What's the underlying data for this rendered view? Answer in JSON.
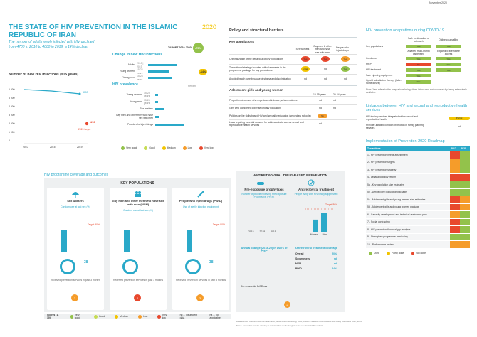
{
  "header": {
    "date": "November 2020",
    "title": "THE STATE OF HIV PREVENTION IN THE ISLAMIC REPUBLIC OF IRAN",
    "year": "2020",
    "summary": "The number of adults newly infected with HIV declined from 4700 in 2010 to 4000 in 2019, a 14% decline.",
    "new_inf_title": "Number of new HIV infections (≥15 years)",
    "change_title": "Change in new HIV infections",
    "target_label": "TARGET 2010-2020",
    "target_value": "-75%",
    "change_rows": [
      {
        "label": "Adults",
        "sub": "2010 | 2019"
      },
      {
        "label": "Young women",
        "sub": "15-24 years"
      },
      {
        "label": "Young men",
        "sub": "15-24 years"
      }
    ],
    "change_badge": "-14%",
    "prevalence_title": "HIV prevalence",
    "prev_rows": [
      {
        "label": "Young women",
        "sub": "15-24 years"
      },
      {
        "label": "Young men",
        "sub": "15-24 years"
      },
      {
        "label": "Sex workers",
        "sub": ""
      },
      {
        "label": "Gay men and other men who have sex with men",
        "sub": ""
      },
      {
        "label": "People who inject drugs",
        "sub": ""
      }
    ],
    "prev_pct": "Percent",
    "target_2020": "2020 target",
    "value_2020": "1200",
    "value_2019": "4000",
    "legend_prev": [
      {
        "label": "Very good",
        "color": "#93c24b"
      },
      {
        "label": "Good",
        "color": "#c6dc54"
      },
      {
        "label": "Medium",
        "color": "#f2c400"
      },
      {
        "label": "Low",
        "color": "#f59c2a"
      },
      {
        "label": "Very low",
        "color": "#e8482d"
      }
    ],
    "years": [
      "2010",
      "2015",
      "2019"
    ],
    "yticks": [
      "6 000",
      "5 000",
      "4 000",
      "3 000",
      "2 000",
      "1 000",
      "0"
    ]
  },
  "policy": {
    "title": "Policy and structural barriers",
    "key_pop": "Key populations",
    "cols": [
      "Sex workers",
      "Gay men & other men who have sex with men",
      "People who inject drugs"
    ],
    "rows": [
      {
        "label": "Criminalization of the behaviour of key populations",
        "v": [
          "Yes",
          "Yes",
          "Yes"
        ],
        "c": [
          "#e8482d",
          "#e8482d",
          "#f59c2a"
        ]
      },
      {
        "label": "The national strategy includes critical elements in the programme package for key populations",
        "v": [
          "≥ Half",
          "nd",
          "Yes"
        ],
        "c": [
          "#f2c400",
          "",
          "#93c24b"
        ]
      },
      {
        "label": "Avoided health care because of stigma and discrimination",
        "v": [
          "nd",
          "nd",
          "nd"
        ],
        "c": [
          "",
          "",
          ""
        ]
      }
    ],
    "ado": "Adolescent girls and young women",
    "ado_cols": [
      "15-19 years",
      "20-24 years"
    ],
    "ado_rows": [
      {
        "label": "Proportion of women who experienced intimate partner violence",
        "v": [
          "nd",
          "nd"
        ]
      },
      {
        "label": "Girls who completed lower secondary education",
        "v": [
          "nd",
          "nd"
        ]
      },
      {
        "label": "Policies on life skills-based HIV and sexuality education (secondary schools)",
        "v": [
          "No"
        ]
      },
      {
        "label": "Laws requiring parental consent for adolescents to access sexual and reproductive health services",
        "v": [
          "nd"
        ]
      }
    ]
  },
  "adaptations": {
    "title": "HIV prevention adaptations during COVID-19",
    "cols": [
      "Safe continuation of outreach",
      "Online counselling"
    ],
    "rows": [
      {
        "label": "Key populations",
        "v": [
          "Yes",
          "Yes"
        ]
      },
      {
        "label": "",
        "v": [
          "Adapted multi-month dispensing",
          "Expanded alternative access"
        ]
      },
      {
        "label": "Condoms",
        "v": [
          "Yes",
          "Yes"
        ]
      },
      {
        "label": "PrEP",
        "v": [
          "No",
          "Yes"
        ]
      },
      {
        "label": "HIV treatment",
        "v": [
          "Yes",
          "Yes"
        ]
      },
      {
        "label": "Safe injecting equipment",
        "v": [
          "Yes"
        ]
      },
      {
        "label": "Opioid substitution therapy (take-home doses)",
        "v": [
          "Yes"
        ]
      }
    ],
    "note": "Note: 'Yes' refers to the adaptations being either introduced and successfully being extensively available."
  },
  "linkages": {
    "title": "Linkages between HIV and sexual and reproductive health services",
    "rows": [
      {
        "label": "HIV testing services integrated within sexual and reproductive health",
        "v": "Partial"
      },
      {
        "label": "Provider-initiated condom promotion in family planning services",
        "v": "nd"
      }
    ]
  },
  "roadmap": {
    "title": "Implementation of Prevention 2020 Roadmap",
    "head": "Ten actions",
    "years": [
      "2017",
      "2020"
    ],
    "rows": [
      {
        "label": "1 - HIV prevention needs assessment",
        "c": [
          "#e8482d",
          "#93c24b"
        ]
      },
      {
        "label": "2 - HIV prevention targets",
        "c": [
          "#f59c2a",
          "#93c24b"
        ]
      },
      {
        "label": "3 - HIV prevention strategy",
        "c": [
          "#f59c2a",
          "#93c24b"
        ]
      },
      {
        "label": "4 - Legal and policy reform",
        "c": [
          "#e8482d",
          "#e8482d"
        ]
      },
      {
        "label": "5a - Key population size estimates",
        "c": [
          "#93c24b",
          "#93c24b"
        ]
      },
      {
        "label": "5b - Defined key population package",
        "c": [
          "#93c24b",
          "#93c24b"
        ]
      },
      {
        "label": "5c - Adolescent girls and young women size estimates",
        "c": [
          "#e8482d",
          "#f59c2a"
        ]
      },
      {
        "label": "5d - Adolescent girls and young women package",
        "c": [
          "#e8482d",
          "#f59c2a"
        ]
      },
      {
        "label": "6 - Capacity development and technical assistance plan",
        "c": [
          "#f59c2a",
          "#93c24b"
        ]
      },
      {
        "label": "7 - Social contracting",
        "c": [
          "#e8482d",
          "#93c24b"
        ]
      },
      {
        "label": "8 - HIV prevention financial gap analysis",
        "c": [
          "#e8482d",
          "#93c24b"
        ]
      },
      {
        "label": "9 - Strengthen programme monitoring",
        "c": [
          "#93c24b",
          "#93c24b"
        ]
      },
      {
        "label": "10 - Performance review",
        "c": [
          "#f59c2a",
          "#f59c2a"
        ]
      }
    ],
    "legend": [
      {
        "label": "Done",
        "color": "#93c24b"
      },
      {
        "label": "Partly done",
        "color": "#f2c400"
      },
      {
        "label": "Not done",
        "color": "#e8482d"
      }
    ]
  },
  "coverage": {
    "title": "HIV programme coverage and outcomes",
    "kp_title": "KEY POPULATIONS",
    "groups": [
      {
        "name": "Sex workers",
        "sub": "Condom use at last sex (%)",
        "target": "Target 90%",
        "dot": "38",
        "bot": "Received prevention services in past 3 months",
        "circ": "3"
      },
      {
        "name": "Gay men and other men who have sex with men (MSM)",
        "sub": "Condom use at last sex (%)",
        "target": "",
        "dot": "",
        "bot": "Received prevention services in past 3 months",
        "circ": "2"
      },
      {
        "name": "People who inject drugs (PWID)",
        "sub": "Use of sterile injection equipment",
        "target": "Target 90%",
        "dot": "38",
        "bot": "Received prevention services in past 3 months",
        "circ": "3"
      }
    ],
    "xlabels": [
      "Non-paying",
      "Sex workers",
      "Gay men and other men who have sex with men",
      "Opioid substitution therapy"
    ],
    "legend_title": "Scores (1-10)",
    "legend": [
      {
        "label": "Very good",
        "color": "#93c24b"
      },
      {
        "label": "Good",
        "color": "#c6dc54"
      },
      {
        "label": "Medium",
        "color": "#f2c400"
      },
      {
        "label": "Low",
        "color": "#f59c2a"
      },
      {
        "label": "Very low",
        "color": "#e8482d"
      }
    ],
    "nd": "nd ... insufficient data",
    "na": "na ... not applicable"
  },
  "arv": {
    "title": "ANTIRETROVIRAL DRUG-BASED PREVENTION",
    "prep": "Pre-exposure prophylaxis",
    "prep_sub": "Number of people receiving Pre-Exposure Prophylaxis (PrEP)",
    "art": "Antiretroviral treatment",
    "art_sub": "People living with HIV virally suppressed",
    "target": "Target 86%",
    "art_cov": "Antiretroviral treatment coverage",
    "art_rows": [
      {
        "label": "Overall",
        "v": "20%"
      },
      {
        "label": "Sex workers",
        "v": "nd"
      },
      {
        "label": "MSM",
        "v": "nd"
      },
      {
        "label": "PWID",
        "v": "44%"
      }
    ],
    "prep_annual": "Annual change (2018-20) in users of PrEP",
    "prep_note": "No accessible PrEP use",
    "years": [
      "2015",
      "2018",
      "2019"
    ],
    "sexes": [
      "Women",
      "Men"
    ],
    "bars": [
      {
        "label": "Women",
        "value": 19
      },
      {
        "label": "Men",
        "value": 30
      }
    ]
  },
  "footer": {
    "line1": "Data sources: UNAIDS 2020 HIV estimates; Global AIDS Monitoring, 2020; UNAIDS National Commitments and Policy Instrument 2017, 2019.",
    "line2": "Notes: Some data may be missing or outdated. For methodological notes see the UNAIDS website."
  }
}
